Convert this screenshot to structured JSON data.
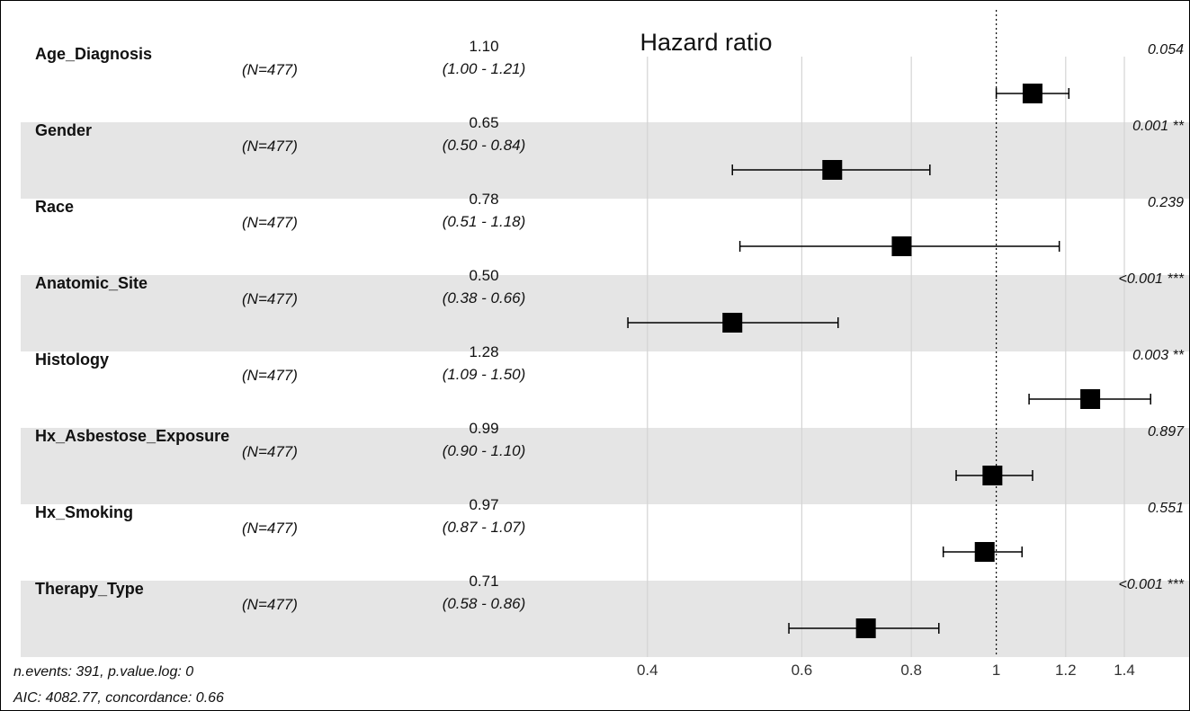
{
  "chart_data": {
    "type": "forest",
    "title": "Hazard ratio",
    "x_scale": "log",
    "reference_line": 1,
    "x_ticks": [
      0.4,
      0.6,
      0.8,
      1,
      1.2,
      1.4
    ],
    "x_tick_labels": [
      "0.4",
      "0.6",
      "0.8",
      "1",
      "1.2",
      "1.4"
    ],
    "xlim": [
      0.34,
      1.64
    ],
    "rows": [
      {
        "variable": "Age_Diagnosis",
        "n": "(N=477)",
        "hr": 1.1,
        "hr_label": "1.10",
        "ci_low": 1.0,
        "ci_high": 1.21,
        "ci_label": "(1.00 - 1.21)",
        "p_label": "0.054",
        "stars": ""
      },
      {
        "variable": "Gender",
        "n": "(N=477)",
        "hr": 0.65,
        "hr_label": "0.65",
        "ci_low": 0.5,
        "ci_high": 0.84,
        "ci_label": "(0.50 - 0.84)",
        "p_label": "0.001",
        "stars": "**"
      },
      {
        "variable": "Race",
        "n": "(N=477)",
        "hr": 0.78,
        "hr_label": "0.78",
        "ci_low": 0.51,
        "ci_high": 1.18,
        "ci_label": "(0.51 - 1.18)",
        "p_label": "0.239",
        "stars": ""
      },
      {
        "variable": "Anatomic_Site",
        "n": "(N=477)",
        "hr": 0.5,
        "hr_label": "0.50",
        "ci_low": 0.38,
        "ci_high": 0.66,
        "ci_label": "(0.38 - 0.66)",
        "p_label": "<0.001",
        "stars": "***"
      },
      {
        "variable": "Histology",
        "n": "(N=477)",
        "hr": 1.28,
        "hr_label": "1.28",
        "ci_low": 1.09,
        "ci_high": 1.5,
        "ci_label": "(1.09 - 1.50)",
        "p_label": "0.003",
        "stars": "**"
      },
      {
        "variable": "Hx_Asbestose_Exposure",
        "n": "(N=477)",
        "hr": 0.99,
        "hr_label": "0.99",
        "ci_low": 0.9,
        "ci_high": 1.1,
        "ci_label": "(0.90 - 1.10)",
        "p_label": "0.897",
        "stars": ""
      },
      {
        "variable": "Hx_Smoking",
        "n": "(N=477)",
        "hr": 0.97,
        "hr_label": "0.97",
        "ci_low": 0.87,
        "ci_high": 1.07,
        "ci_label": "(0.87 - 1.07)",
        "p_label": "0.551",
        "stars": ""
      },
      {
        "variable": "Therapy_Type",
        "n": "(N=477)",
        "hr": 0.71,
        "hr_label": "0.71",
        "ci_low": 0.58,
        "ci_high": 0.86,
        "ci_label": "(0.58 - 0.86)",
        "p_label": "<0.001",
        "stars": "***"
      }
    ],
    "footer": [
      "n.events: 391, p.value.log: 0",
      "AIC: 4082.77, concordance: 0.66"
    ],
    "colors": {
      "band": "#e5e5e5",
      "gridline": "#d4d4d4",
      "marker": "#000000"
    }
  }
}
